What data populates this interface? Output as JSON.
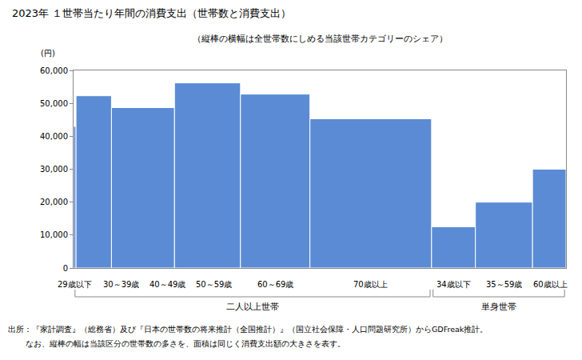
{
  "chart_data": {
    "type": "bar",
    "title": "2023年 １世帯当たり年間の消費支出（世帯数と消費支出）",
    "subtitle": "（縦棒の横幅は全世帯数にしめる当該世帯カテゴリーのシェア）",
    "y_label": "(円)",
    "categories": [
      "29歳以下",
      "30～39歳",
      "40～49歳",
      "50～59歳",
      "60～69歳",
      "70歳以上",
      "34歳以下",
      "35～59歳",
      "60歳以上"
    ],
    "values": [
      43000,
      52300,
      48700,
      56200,
      52800,
      45300,
      12500,
      20000,
      30000
    ],
    "shares": [
      0.5,
      7.2,
      12.8,
      13.4,
      14.1,
      24.7,
      8.9,
      11.6,
      6.8
    ],
    "groups": [
      {
        "label": "二人以上世帯",
        "count": 6
      },
      {
        "label": "単身世帯",
        "count": 3
      }
    ],
    "color": "#5b8bd5",
    "ylim": [
      0,
      60000
    ],
    "yticks": [
      0,
      {
        "value": 10000,
        "label": "10,000"
      },
      {
        "value": 20000,
        "label": "20,000"
      },
      {
        "value": 30000,
        "label": "30,000"
      },
      {
        "value": 40000,
        "label": "40,000"
      },
      {
        "value": 50000,
        "label": "50,000"
      },
      {
        "value": 60000,
        "label": "60,000"
      }
    ],
    "grid": false,
    "notes": [
      "出所：『家計調査』（総務省）及び『日本の世帯数の将来推計（全国推計）』（国立社会保障・人口問題研究所）からGDFreak推計。",
      "なお、縦棒の幅は当該区分の世帯数の多さを、面積は同じく消費支出額の大きさを表す。"
    ]
  }
}
